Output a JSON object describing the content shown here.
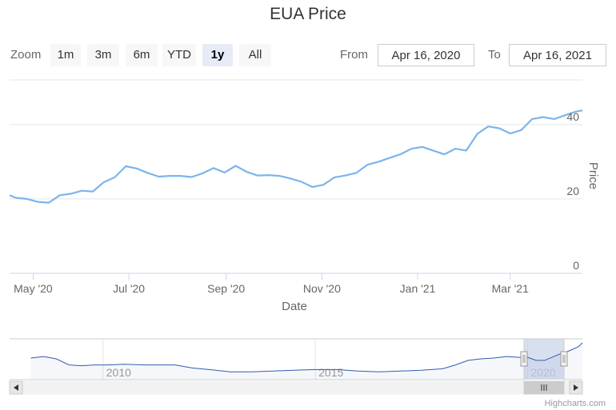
{
  "title": "EUA Price",
  "zoom": {
    "label": "Zoom",
    "buttons": [
      "1m",
      "3m",
      "6m",
      "YTD",
      "1y",
      "All"
    ],
    "active": "1y"
  },
  "range": {
    "from_label": "From",
    "from_value": "Apr 16, 2020",
    "to_label": "To",
    "to_value": "Apr 16, 2021"
  },
  "credits": "Highcharts.com",
  "colors": {
    "series": "#7cb5ec",
    "navigator_series": "#335cad",
    "navigator_mask": "#cbd5ea",
    "active_button": "#e6ebf5"
  },
  "chart_data": [
    {
      "type": "line",
      "title": "EUA Price",
      "xlabel": "Date",
      "ylabel": "Price",
      "xlim": [
        "2020-04-16",
        "2021-04-16"
      ],
      "ylim": [
        0,
        52
      ],
      "y_ticks": [
        0,
        20,
        40
      ],
      "x_ticks": [
        "May '20",
        "Jul '20",
        "Sep '20",
        "Nov '20",
        "Jan '21",
        "Mar '21"
      ],
      "y_axis_side": "right",
      "grid": true,
      "series": [
        {
          "x": [
            "2020-04-16",
            "2020-04-20",
            "2020-04-27",
            "2020-05-04",
            "2020-05-11",
            "2020-05-18",
            "2020-05-25",
            "2020-06-01",
            "2020-06-08",
            "2020-06-15",
            "2020-06-22",
            "2020-06-29",
            "2020-07-06",
            "2020-07-13",
            "2020-07-20",
            "2020-07-27",
            "2020-08-03",
            "2020-08-10",
            "2020-08-17",
            "2020-08-24",
            "2020-08-31",
            "2020-09-07",
            "2020-09-14",
            "2020-09-21",
            "2020-09-28",
            "2020-10-05",
            "2020-10-12",
            "2020-10-19",
            "2020-10-26",
            "2020-11-02",
            "2020-11-09",
            "2020-11-16",
            "2020-11-23",
            "2020-11-30",
            "2020-12-07",
            "2020-12-14",
            "2020-12-21",
            "2020-12-28",
            "2021-01-04",
            "2021-01-11",
            "2021-01-18",
            "2021-01-25",
            "2021-02-01",
            "2021-02-08",
            "2021-02-15",
            "2021-02-22",
            "2021-03-01",
            "2021-03-08",
            "2021-03-15",
            "2021-03-22",
            "2021-03-29",
            "2021-04-05",
            "2021-04-12",
            "2021-04-16"
          ],
          "y": [
            21.0,
            20.3,
            20.0,
            19.2,
            19.0,
            21.0,
            21.4,
            22.2,
            22.0,
            24.5,
            25.8,
            28.8,
            28.2,
            27.0,
            26.0,
            26.2,
            26.2,
            25.9,
            26.9,
            28.3,
            27.1,
            28.9,
            27.3,
            26.3,
            26.4,
            26.2,
            25.5,
            24.6,
            23.2,
            23.8,
            25.8,
            26.3,
            27.0,
            29.2,
            30.0,
            31.0,
            32.0,
            33.5,
            34.0,
            33.0,
            32.0,
            33.5,
            33.0,
            37.5,
            39.5,
            39.0,
            37.6,
            38.5,
            41.5,
            42.0,
            41.5,
            42.5,
            43.5,
            43.8
          ]
        }
      ]
    },
    {
      "type": "area",
      "title": "",
      "x_ticks": [
        "2010",
        "2015",
        "2020"
      ],
      "selected_range": [
        "2020-04-16",
        "2021-04-16"
      ],
      "series": [
        {
          "x": [
            2008.3,
            2008.6,
            2008.9,
            2009.2,
            2009.5,
            2009.8,
            2010.1,
            2010.5,
            2011.0,
            2011.3,
            2011.7,
            2012.1,
            2012.5,
            2013.0,
            2013.5,
            2014.0,
            2014.5,
            2015.0,
            2015.5,
            2016.0,
            2016.5,
            2017.0,
            2017.5,
            2018.0,
            2018.3,
            2018.6,
            2018.9,
            2019.2,
            2019.5,
            2019.8,
            2020.0,
            2020.2,
            2020.4,
            2020.7,
            2021.0,
            2021.2,
            2021.29
          ],
          "y": [
            23,
            25,
            22,
            14,
            13,
            14,
            14,
            15,
            14,
            14,
            14,
            10,
            8,
            5,
            5,
            6,
            7,
            8,
            8,
            6,
            5,
            6,
            7,
            9,
            14,
            20,
            22,
            23,
            25,
            24,
            24,
            20,
            20,
            27,
            33,
            38,
            43
          ]
        }
      ]
    }
  ]
}
